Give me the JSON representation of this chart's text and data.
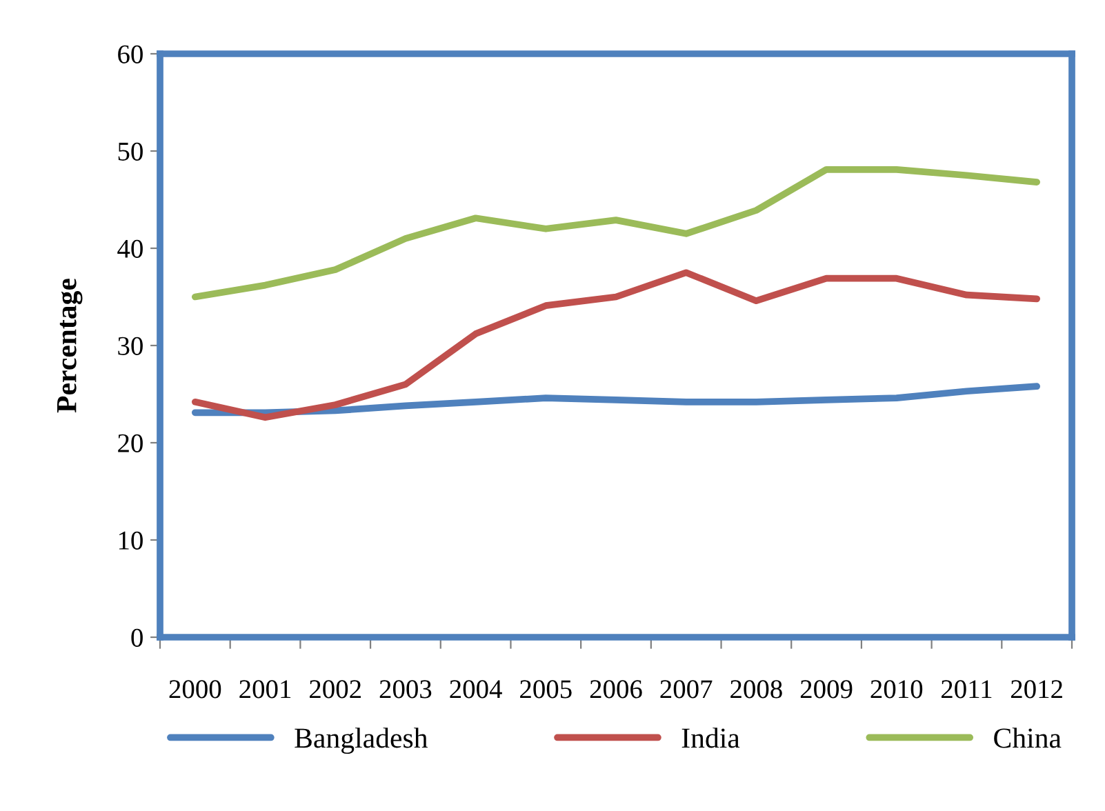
{
  "chart_data": {
    "type": "line",
    "ylabel": "Percentage",
    "categories": [
      "2000",
      "2001",
      "2002",
      "2003",
      "2004",
      "2005",
      "2006",
      "2007",
      "2008",
      "2009",
      "2010",
      "2011",
      "2012"
    ],
    "series": [
      {
        "name": "Bangladesh",
        "color": "#4f81bd",
        "values": [
          23.1,
          23.1,
          23.3,
          23.8,
          24.2,
          24.6,
          24.4,
          24.2,
          24.2,
          24.4,
          24.6,
          25.3,
          25.8
        ]
      },
      {
        "name": "India",
        "color": "#c0504d",
        "values": [
          24.2,
          22.6,
          23.9,
          26.0,
          31.2,
          34.1,
          35.0,
          37.5,
          34.6,
          36.9,
          36.9,
          35.2,
          34.8
        ]
      },
      {
        "name": "China",
        "color": "#9bbb59",
        "values": [
          35.0,
          36.2,
          37.8,
          41.0,
          43.1,
          42.0,
          42.9,
          41.5,
          43.9,
          48.1,
          48.1,
          47.5,
          46.8
        ]
      }
    ],
    "ylim": [
      0,
      60
    ],
    "yticks": [
      0,
      10,
      20,
      30,
      40,
      50,
      60
    ],
    "grid": false,
    "legend": "bottom",
    "marker": "none",
    "line_style": "solid"
  }
}
